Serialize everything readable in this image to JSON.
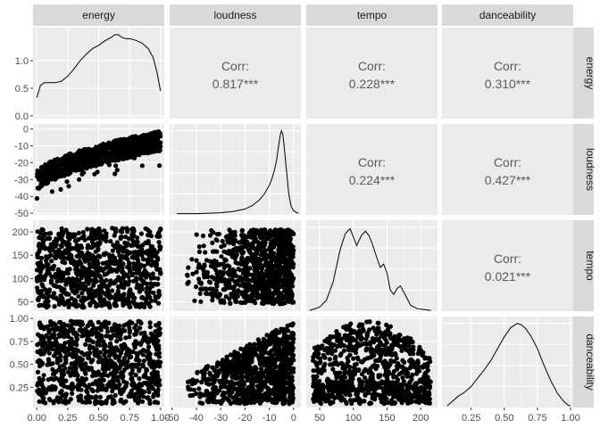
{
  "chart_data": {
    "type": "pairs",
    "variables": [
      "energy",
      "loudness",
      "tempo",
      "danceability"
    ],
    "axes": {
      "energy": {
        "range": [
          -0.03,
          1.03
        ],
        "ticks": [
          0,
          0.25,
          0.5,
          0.75,
          1
        ],
        "tick_labels": [
          "0.00",
          "0.25",
          "0.50",
          "0.75",
          "1.00"
        ]
      },
      "loudness": {
        "range": [
          -51,
          3
        ],
        "ticks": [
          -50,
          -40,
          -30,
          -20,
          -10,
          0
        ],
        "tick_labels": [
          "-50",
          "-40",
          "-30",
          "-20",
          "-10",
          "0"
        ]
      },
      "tempo": {
        "range": [
          30,
          225
        ],
        "ticks": [
          50,
          100,
          150,
          200
        ],
        "tick_labels": [
          "50",
          "100",
          "150",
          "200"
        ]
      },
      "danceability": {
        "range": [
          0.03,
          1.02
        ],
        "ticks": [
          0.25,
          0.5,
          0.75,
          1
        ],
        "tick_labels": [
          "0.25",
          "0.50",
          "0.75",
          "1.00"
        ]
      }
    },
    "energy_density_axis": {
      "range": [
        -0.05,
        1.6
      ],
      "ticks": [
        0,
        0.5,
        1
      ],
      "tick_labels": [
        "0.0",
        "0.5",
        "1.0"
      ]
    },
    "correlations": [
      {
        "row": "energy",
        "col": "loudness",
        "label": "Corr:",
        "value": "0.817***"
      },
      {
        "row": "energy",
        "col": "tempo",
        "label": "Corr:",
        "value": "0.228***"
      },
      {
        "row": "energy",
        "col": "danceability",
        "label": "Corr:",
        "value": "0.310***"
      },
      {
        "row": "loudness",
        "col": "tempo",
        "label": "Corr:",
        "value": "0.224***"
      },
      {
        "row": "loudness",
        "col": "danceability",
        "label": "Corr:",
        "value": "0.427***"
      },
      {
        "row": "tempo",
        "col": "danceability",
        "label": "Corr:",
        "value": "0.021***"
      }
    ],
    "densities": {
      "energy": {
        "x": [
          0,
          0.03,
          0.06,
          0.1,
          0.15,
          0.2,
          0.25,
          0.3,
          0.35,
          0.4,
          0.45,
          0.5,
          0.55,
          0.6,
          0.63,
          0.66,
          0.69,
          0.72,
          0.75,
          0.8,
          0.85,
          0.9,
          0.94,
          0.97,
          1.0
        ],
        "y": [
          0.33,
          0.55,
          0.6,
          0.6,
          0.6,
          0.63,
          0.72,
          0.85,
          1.0,
          1.12,
          1.22,
          1.28,
          1.36,
          1.42,
          1.47,
          1.47,
          1.42,
          1.4,
          1.4,
          1.37,
          1.32,
          1.22,
          1.06,
          0.8,
          0.45
        ]
      },
      "loudness": {
        "x": [
          -48,
          -40,
          -35,
          -30,
          -25,
          -20,
          -17,
          -14,
          -12,
          -10,
          -9,
          -8,
          -7,
          -6.5,
          -6,
          -5.5,
          -5,
          -4.5,
          -4,
          -3,
          -2,
          -1,
          0,
          1,
          2
        ],
        "y": [
          0.015,
          0.015,
          0.02,
          0.025,
          0.04,
          0.07,
          0.11,
          0.18,
          0.25,
          0.35,
          0.42,
          0.52,
          0.65,
          0.75,
          0.85,
          0.95,
          1.0,
          0.96,
          0.85,
          0.55,
          0.25,
          0.1,
          0.05,
          0.03,
          0.02
        ]
      },
      "tempo": {
        "x": [
          35,
          40,
          50,
          60,
          70,
          80,
          88,
          95,
          100,
          105,
          112,
          118,
          123,
          128,
          135,
          140,
          145,
          150,
          155,
          160,
          165,
          170,
          178,
          185,
          195,
          205,
          215
        ],
        "y": [
          0.01,
          0.02,
          0.05,
          0.13,
          0.35,
          0.72,
          0.92,
          0.98,
          0.88,
          0.78,
          0.9,
          0.95,
          0.9,
          0.8,
          0.63,
          0.52,
          0.56,
          0.45,
          0.25,
          0.2,
          0.27,
          0.3,
          0.18,
          0.07,
          0.03,
          0.02,
          0.01
        ]
      },
      "danceability": {
        "x": [
          0.07,
          0.1,
          0.15,
          0.2,
          0.25,
          0.3,
          0.35,
          0.4,
          0.45,
          0.5,
          0.55,
          0.6,
          0.63,
          0.66,
          0.7,
          0.75,
          0.8,
          0.85,
          0.9,
          0.95,
          0.98,
          1.0
        ],
        "y": [
          0.02,
          0.06,
          0.13,
          0.18,
          0.25,
          0.35,
          0.45,
          0.56,
          0.7,
          0.84,
          0.95,
          1.0,
          0.98,
          0.94,
          0.85,
          0.7,
          0.5,
          0.32,
          0.17,
          0.07,
          0.03,
          0.02
        ]
      }
    },
    "colors": {
      "panel_bg": "#ebebeb",
      "grid_major": "#ffffff",
      "grid_minor": "#f4f4f4",
      "strip_bg": "#d9d9d9",
      "points": "#000000",
      "corr_text": "#595959",
      "tick_text": "#4d4d4d",
      "strip_text": "#1a1a1a"
    }
  }
}
